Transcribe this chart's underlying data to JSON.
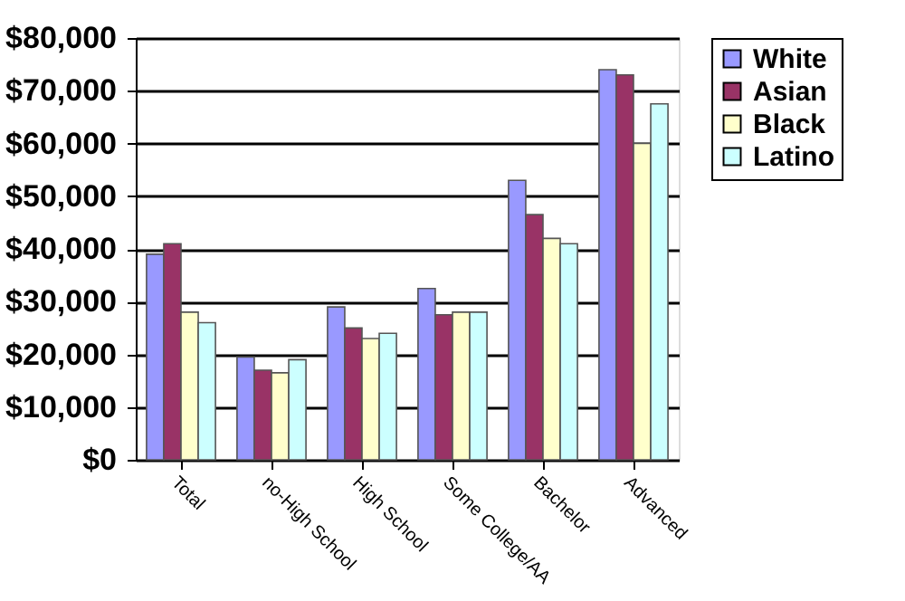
{
  "chart_data": {
    "type": "bar",
    "categories": [
      "Total",
      "no-High School",
      "High School",
      "Some College/AA",
      "Bachelor",
      "Advanced"
    ],
    "series": [
      {
        "name": "White",
        "color": "#9999ff",
        "values": [
          39000,
          19500,
          29000,
          32500,
          53000,
          74000
        ]
      },
      {
        "name": "Asian",
        "color": "#993366",
        "values": [
          41000,
          17000,
          25000,
          27500,
          46500,
          73000
        ]
      },
      {
        "name": "Black",
        "color": "#ffffcc",
        "values": [
          28000,
          16500,
          23000,
          28000,
          42000,
          60000
        ]
      },
      {
        "name": "Latino",
        "color": "#ccffff",
        "values": [
          26000,
          19000,
          24000,
          28000,
          41000,
          67500
        ]
      }
    ],
    "ylim": [
      0,
      80000
    ],
    "yticks": [
      {
        "value": 0,
        "label": "$0"
      },
      {
        "value": 10000,
        "label": "$10,000"
      },
      {
        "value": 20000,
        "label": "$20,000"
      },
      {
        "value": 30000,
        "label": "$30,000"
      },
      {
        "value": 40000,
        "label": "$40,000"
      },
      {
        "value": 50000,
        "label": "$50,000"
      },
      {
        "value": 60000,
        "label": "$60,000"
      },
      {
        "value": 70000,
        "label": "$70,000"
      },
      {
        "value": 80000,
        "label": "$80,000"
      }
    ],
    "grid": true,
    "legend": "right"
  }
}
